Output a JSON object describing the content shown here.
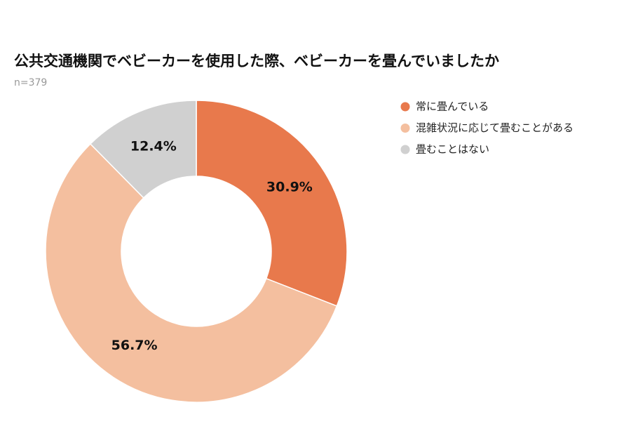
{
  "chart_data": {
    "type": "donut",
    "title": "公共交通機関でベビーカーを使用した際、ベビーカーを畳んでいましたか",
    "subtitle": "n=379",
    "categories": [
      "常に畳んでいる",
      "混雑状況に応じて畳むことがある",
      "畳むことはない"
    ],
    "values": [
      30.9,
      56.7,
      12.4
    ],
    "value_labels": [
      "30.9%",
      "56.7%",
      "12.4%"
    ],
    "colors": [
      "#e8794c",
      "#f4bf9f",
      "#d0d0d0"
    ],
    "legend": "top-right"
  }
}
